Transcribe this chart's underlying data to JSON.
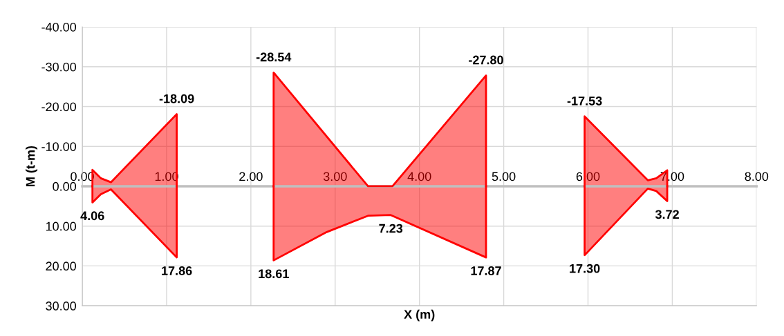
{
  "chart_data": {
    "type": "area",
    "xlabel": "X (m)",
    "ylabel": "M (t-m)",
    "xlim": [
      0,
      8
    ],
    "xticks": [
      {
        "value": 0,
        "label": "0.00"
      },
      {
        "value": 1,
        "label": "1.00"
      },
      {
        "value": 2,
        "label": "2.00"
      },
      {
        "value": 3,
        "label": "3.00"
      },
      {
        "value": 4,
        "label": "4.00"
      },
      {
        "value": 5,
        "label": "5.00"
      },
      {
        "value": 6,
        "label": "6.00"
      },
      {
        "value": 7,
        "label": "7.00"
      },
      {
        "value": 8,
        "label": "8.00"
      }
    ],
    "ylim": [
      30,
      -40
    ],
    "yticks": [
      {
        "value": -40,
        "label": "-40.00"
      },
      {
        "value": -30,
        "label": "-30.00"
      },
      {
        "value": -20,
        "label": "-20.00"
      },
      {
        "value": -10,
        "label": "-10.00"
      },
      {
        "value": 0,
        "label": "0.00"
      },
      {
        "value": 10,
        "label": "10.00"
      },
      {
        "value": 20,
        "label": "20.00"
      },
      {
        "value": 30,
        "label": "30.00"
      }
    ],
    "grid": true,
    "series": [
      {
        "color": "#ff0000",
        "x": [
          0.12,
          0.22,
          0.34,
          1.12,
          1.7,
          2.27,
          3.39,
          3.68,
          4.79,
          5.4,
          5.96,
          6.71,
          6.81,
          6.94
        ],
        "values": [
          -4.1,
          -2.0,
          -1.0,
          -18.09,
          null,
          -28.54,
          0,
          0,
          -27.8,
          null,
          -17.53,
          -1.5,
          -2.0,
          -4.0
        ],
        "value_labels": [
          null,
          null,
          null,
          "-18.09",
          null,
          "-28.54",
          null,
          null,
          "-27.80",
          null,
          "-17.53",
          null,
          null,
          null
        ]
      },
      {
        "color": "#ff0000",
        "x": [
          0.12,
          0.22,
          0.34,
          1.12,
          1.7,
          2.27,
          2.9,
          3.39,
          3.66,
          4.79,
          5.4,
          5.96,
          6.71,
          6.81,
          6.94
        ],
        "values": [
          4.06,
          2.0,
          0.8,
          17.86,
          null,
          18.61,
          11.5,
          7.4,
          7.23,
          17.87,
          null,
          17.3,
          0.6,
          1.2,
          3.72
        ],
        "value_labels": [
          "4.06",
          null,
          null,
          "17.86",
          null,
          "18.61",
          null,
          null,
          "7.23",
          "17.87",
          null,
          "17.30",
          null,
          null,
          "3.72"
        ]
      }
    ]
  }
}
